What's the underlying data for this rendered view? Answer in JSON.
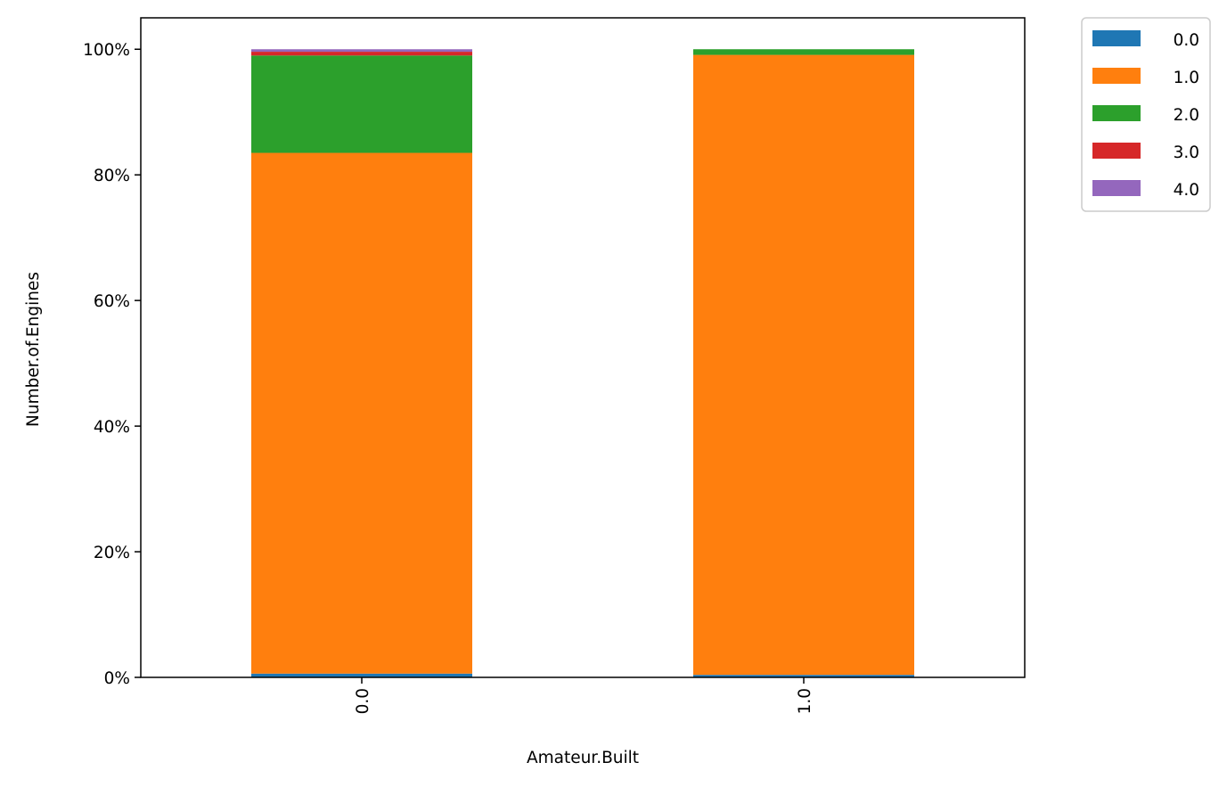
{
  "chart_data": {
    "type": "bar",
    "stacked": true,
    "normalized": true,
    "title": "",
    "xlabel": "Amateur.Built",
    "ylabel": "Number.of.Engines",
    "categories": [
      "0.0",
      "1.0"
    ],
    "ylim": [
      0,
      1.05
    ],
    "y_ticks": [
      0,
      0.2,
      0.4,
      0.6,
      0.8,
      1.0
    ],
    "y_tick_labels": [
      "0%",
      "20%",
      "40%",
      "60%",
      "80%",
      "100%"
    ],
    "x_tick_rotation": "vertical",
    "grid": false,
    "legend_placement": "outside-top-right",
    "series": [
      {
        "name": "0.0",
        "color": "#1f77b4",
        "values": [
          0.006,
          0.004
        ]
      },
      {
        "name": "1.0",
        "color": "#ff7f0e",
        "values": [
          0.829,
          0.987
        ]
      },
      {
        "name": "2.0",
        "color": "#2ca02c",
        "values": [
          0.155,
          0.009
        ]
      },
      {
        "name": "3.0",
        "color": "#d62728",
        "values": [
          0.006,
          0.0
        ]
      },
      {
        "name": "4.0",
        "color": "#9467bd",
        "values": [
          0.004,
          0.0
        ]
      }
    ]
  }
}
